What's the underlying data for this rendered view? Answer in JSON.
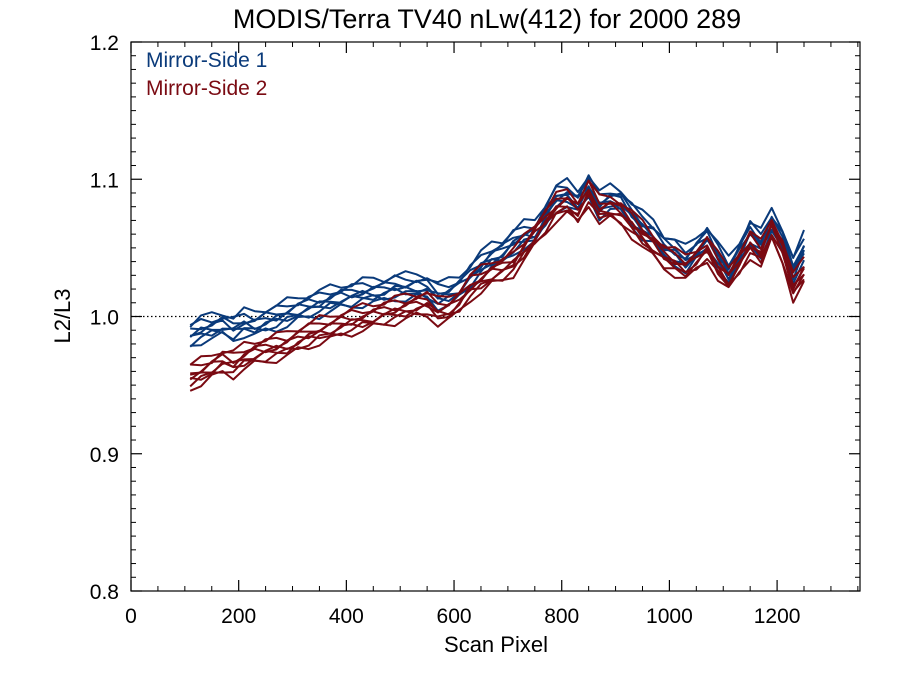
{
  "chart_data": {
    "type": "line",
    "title": "MODIS/Terra TV40 nLw(412) for 2000 289",
    "xlabel": "Scan Pixel",
    "ylabel": "L2/L3",
    "xlim": [
      0,
      1354
    ],
    "ylim": [
      0.8,
      1.2
    ],
    "xticks": [
      "0",
      "200",
      "400",
      "600",
      "800",
      "1000",
      "1200"
    ],
    "yticks": [
      "0.8",
      "0.9",
      "1.0",
      "1.1",
      "1.2"
    ],
    "reference_line": {
      "y": 1.0,
      "style": "dotted"
    },
    "legend_position": "top-left",
    "x": [
      110,
      130,
      150,
      170,
      190,
      210,
      230,
      250,
      270,
      290,
      310,
      330,
      350,
      370,
      390,
      410,
      430,
      450,
      470,
      490,
      510,
      530,
      550,
      570,
      590,
      610,
      630,
      650,
      670,
      690,
      710,
      730,
      750,
      770,
      790,
      810,
      830,
      850,
      870,
      890,
      910,
      930,
      950,
      970,
      990,
      1010,
      1030,
      1050,
      1070,
      1090,
      1110,
      1130,
      1150,
      1170,
      1190,
      1210,
      1230,
      1250
    ],
    "series": [
      {
        "name": "Mirror-Side 1",
        "color": "#0a3a7a",
        "values": [
          0.985,
          0.989,
          0.991,
          0.993,
          0.99,
          0.994,
          0.993,
          0.996,
          0.998,
          1.001,
          1.004,
          1.006,
          1.008,
          1.011,
          1.013,
          1.014,
          1.016,
          1.017,
          1.018,
          1.02,
          1.02,
          1.021,
          1.02,
          1.014,
          1.016,
          1.02,
          1.028,
          1.036,
          1.043,
          1.046,
          1.053,
          1.058,
          1.06,
          1.073,
          1.085,
          1.088,
          1.082,
          1.094,
          1.08,
          1.085,
          1.083,
          1.073,
          1.065,
          1.06,
          1.05,
          1.046,
          1.04,
          1.048,
          1.056,
          1.043,
          1.032,
          1.045,
          1.06,
          1.052,
          1.068,
          1.055,
          1.033,
          1.05
        ]
      },
      {
        "name": "Mirror-Side 2",
        "color": "#7a0a12",
        "values": [
          0.955,
          0.958,
          0.962,
          0.966,
          0.964,
          0.969,
          0.972,
          0.974,
          0.976,
          0.978,
          0.982,
          0.985,
          0.988,
          0.99,
          0.993,
          0.995,
          0.997,
          0.999,
          1.001,
          1.003,
          1.005,
          1.007,
          1.008,
          1.002,
          1.004,
          1.01,
          1.02,
          1.025,
          1.03,
          1.033,
          1.038,
          1.048,
          1.058,
          1.068,
          1.078,
          1.082,
          1.075,
          1.089,
          1.076,
          1.078,
          1.074,
          1.066,
          1.058,
          1.05,
          1.042,
          1.038,
          1.034,
          1.04,
          1.048,
          1.035,
          1.026,
          1.038,
          1.051,
          1.044,
          1.062,
          1.046,
          1.02,
          1.032
        ]
      }
    ]
  }
}
